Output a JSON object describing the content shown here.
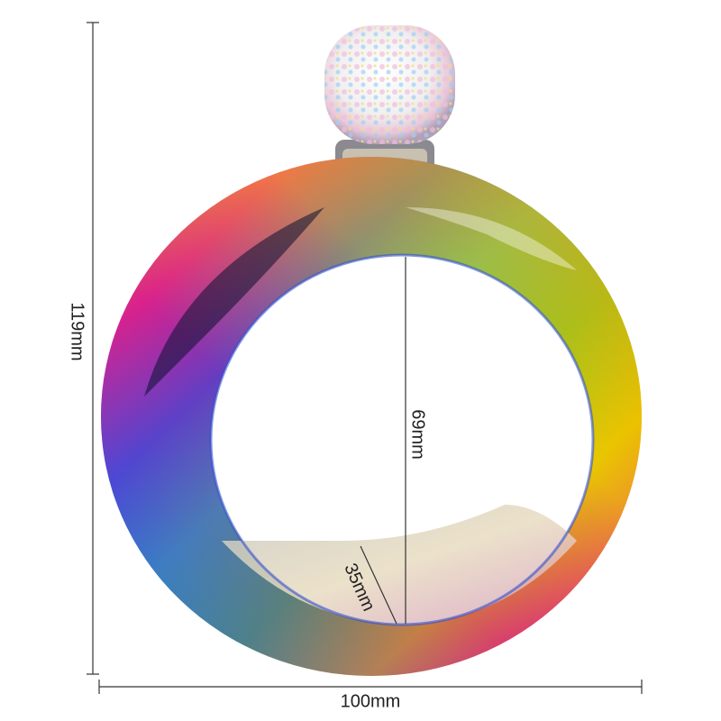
{
  "dimensions": {
    "height": "119mm",
    "inner_diameter": "69mm",
    "width_band": "35mm",
    "width": "100mm"
  }
}
